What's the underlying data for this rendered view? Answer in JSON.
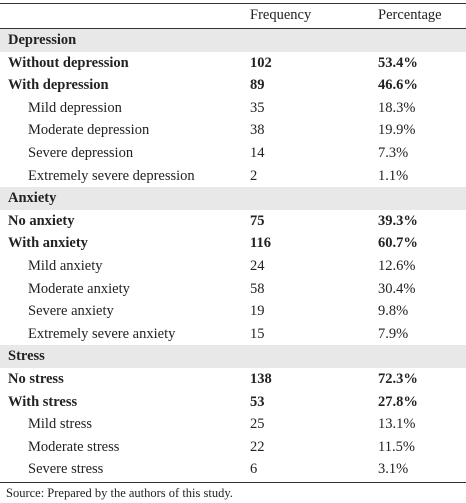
{
  "header": {
    "columns": [
      "Frequency",
      "Percentage"
    ]
  },
  "sections": [
    {
      "title": "Depression",
      "groups": [
        {
          "label": "Without depression",
          "frequency": 102,
          "percentage": "53.4%",
          "items": []
        },
        {
          "label": "With depression",
          "frequency": 89,
          "percentage": "46.6%",
          "items": [
            {
              "label": "Mild depression",
              "frequency": 35,
              "percentage": "18.3%"
            },
            {
              "label": "Moderate depression",
              "frequency": 38,
              "percentage": "19.9%"
            },
            {
              "label": "Severe depression",
              "frequency": 14,
              "percentage": "7.3%"
            },
            {
              "label": "Extremely severe depression",
              "frequency": 2,
              "percentage": "1.1%"
            }
          ]
        }
      ]
    },
    {
      "title": "Anxiety",
      "groups": [
        {
          "label": "No anxiety",
          "frequency": 75,
          "percentage": "39.3%",
          "items": []
        },
        {
          "label": "With anxiety",
          "frequency": 116,
          "percentage": "60.7%",
          "items": [
            {
              "label": "Mild anxiety",
              "frequency": 24,
              "percentage": "12.6%"
            },
            {
              "label": "Moderate anxiety",
              "frequency": 58,
              "percentage": "30.4%"
            },
            {
              "label": "Severe anxiety",
              "frequency": 19,
              "percentage": "9.8%"
            },
            {
              "label": "Extremely severe anxiety",
              "frequency": 15,
              "percentage": "7.9%"
            }
          ]
        }
      ]
    },
    {
      "title": "Stress",
      "groups": [
        {
          "label": "No stress",
          "frequency": 138,
          "percentage": "72.3%",
          "items": []
        },
        {
          "label": "With stress",
          "frequency": 53,
          "percentage": "27.8%",
          "items": [
            {
              "label": "Mild stress",
              "frequency": 25,
              "percentage": "13.1%"
            },
            {
              "label": "Moderate stress",
              "frequency": 22,
              "percentage": "11.5%"
            },
            {
              "label": "Severe stress",
              "frequency": 6,
              "percentage": "3.1%"
            }
          ]
        }
      ]
    }
  ],
  "footer": {
    "source": "Source: Prepared by the authors of this study."
  }
}
